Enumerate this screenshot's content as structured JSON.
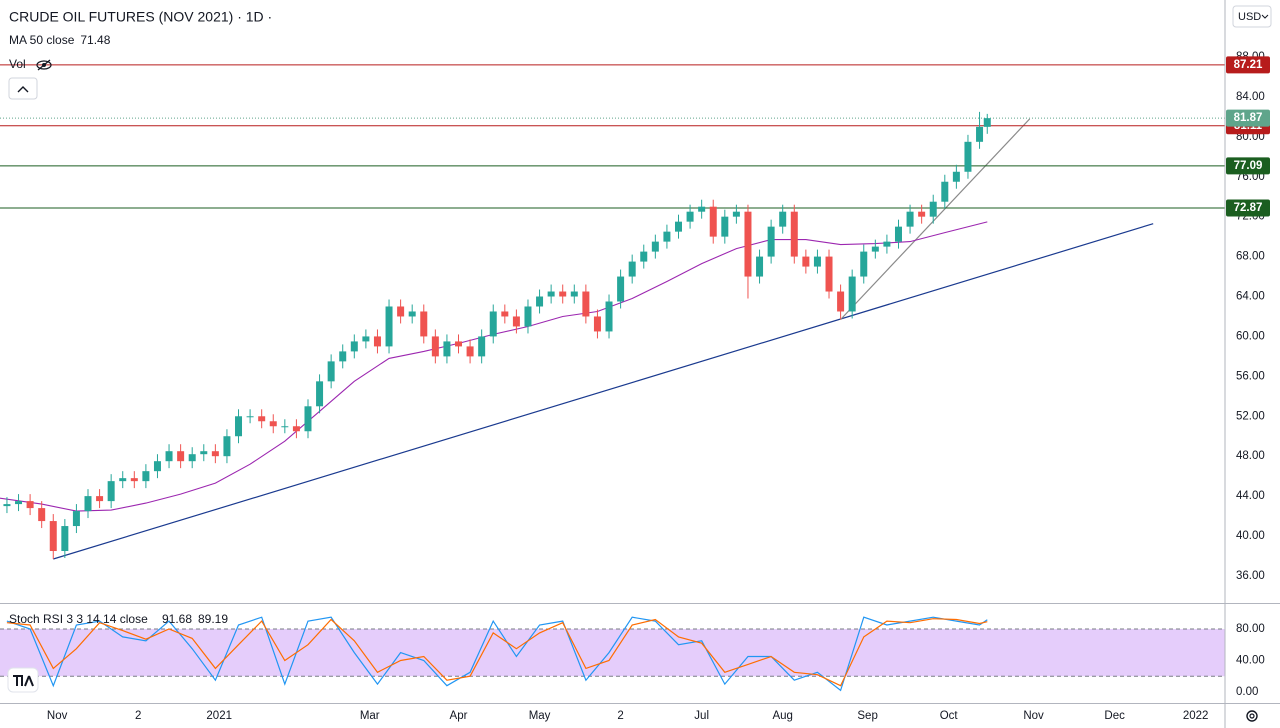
{
  "chart_data": [
    {
      "type": "candlestick",
      "title": "CRUDE OIL FUTURES (NOV 2021) · 1D ·",
      "currency": "USD",
      "up_color": "#26a69a",
      "down_color": "#ef5350",
      "xlim": [
        -14.8,
        302.6
      ],
      "ylim": [
        33.29,
        93.71
      ],
      "xticks": [
        {
          "value": 0,
          "label": "Nov"
        },
        {
          "value": 21,
          "label": "2"
        },
        {
          "value": 42,
          "label": "2021"
        },
        {
          "value": 81,
          "label": "Mar"
        },
        {
          "value": 104,
          "label": "Apr"
        },
        {
          "value": 125,
          "label": "May"
        },
        {
          "value": 146,
          "label": "2"
        },
        {
          "value": 167,
          "label": "Jul"
        },
        {
          "value": 188,
          "label": "Aug"
        },
        {
          "value": 210,
          "label": "Sep"
        },
        {
          "value": 231,
          "label": "Oct"
        },
        {
          "value": 253,
          "label": "Nov"
        },
        {
          "value": 274,
          "label": "Dec"
        },
        {
          "value": 295,
          "label": "2022"
        }
      ],
      "yticks": [
        {
          "value": 36,
          "label": "36.00"
        },
        {
          "value": 40,
          "label": "40.00"
        },
        {
          "value": 44,
          "label": "44.00"
        },
        {
          "value": 48,
          "label": "48.00"
        },
        {
          "value": 52,
          "label": "52.00"
        },
        {
          "value": 56,
          "label": "56.00"
        },
        {
          "value": 60,
          "label": "60.00"
        },
        {
          "value": 64,
          "label": "64.00"
        },
        {
          "value": 68,
          "label": "68.00"
        },
        {
          "value": 72,
          "label": "72.00"
        },
        {
          "value": 76,
          "label": "76.00"
        },
        {
          "value": 80,
          "label": "80.00"
        },
        {
          "value": 84,
          "label": "84.00"
        },
        {
          "value": 88,
          "label": "88.00"
        }
      ],
      "x": [
        -13,
        -10,
        -7,
        -4,
        -1,
        2,
        5,
        8,
        11,
        14,
        17,
        20,
        23,
        26,
        29,
        32,
        35,
        38,
        41,
        44,
        47,
        50,
        53,
        56,
        59,
        62,
        65,
        68,
        71,
        74,
        77,
        80,
        83,
        86,
        89,
        92,
        95,
        98,
        101,
        104,
        107,
        110,
        113,
        116,
        119,
        122,
        125,
        128,
        131,
        134,
        137,
        140,
        143,
        146,
        149,
        152,
        155,
        158,
        161,
        164,
        167,
        170,
        173,
        176,
        179,
        182,
        185,
        188,
        191,
        194,
        197,
        200,
        203,
        206,
        209,
        212,
        215,
        218,
        221,
        224,
        227,
        230,
        233,
        236,
        239,
        241
      ],
      "open": [
        43.0,
        43.2,
        43.5,
        42.8,
        41.5,
        38.5,
        41,
        42.5,
        44,
        43.5,
        45.5,
        45.8,
        45.5,
        46.5,
        47.5,
        48.5,
        47.5,
        48.2,
        48.5,
        48,
        50,
        52,
        52,
        51.5,
        51,
        51,
        50.5,
        53,
        55.5,
        57.5,
        58.5,
        59.5,
        60,
        59,
        63,
        62,
        62.5,
        60,
        58,
        59.5,
        59,
        58,
        60,
        62.5,
        62,
        61,
        63,
        64,
        64.5,
        64,
        64.5,
        62,
        60.5,
        63.5,
        66,
        67.5,
        68.5,
        69.5,
        70.5,
        71.5,
        72.5,
        73,
        70,
        72,
        72.5,
        66,
        68,
        71,
        72.5,
        68,
        67,
        68,
        64.5,
        62.5,
        66,
        68.5,
        69,
        69.5,
        71,
        72.5,
        72,
        73.5,
        75.5,
        76.5,
        79.5,
        81
      ],
      "high": [
        43.9,
        44.2,
        44.2,
        43.5,
        42.2,
        41.7,
        43.2,
        44.7,
        44.7,
        46.2,
        46.5,
        46.5,
        47.2,
        48.2,
        49.2,
        49.2,
        48.9,
        49.2,
        49.2,
        50.7,
        52.7,
        52.7,
        52.7,
        52.2,
        51.7,
        51.7,
        53.7,
        56.2,
        58.2,
        59.2,
        60.2,
        60.7,
        60.7,
        63.7,
        63.7,
        63.2,
        63.2,
        60.7,
        60.2,
        60.2,
        59.7,
        60.7,
        63.2,
        63.2,
        62.7,
        63.7,
        64.7,
        65.2,
        65.2,
        65.2,
        65.2,
        62.7,
        64.2,
        66.7,
        68.2,
        69.2,
        70.2,
        71.2,
        72.2,
        73.2,
        73.7,
        73.7,
        72.7,
        73.2,
        73.2,
        68.7,
        71.7,
        73.2,
        73.2,
        68.7,
        68.7,
        68.7,
        65.2,
        66.7,
        69.2,
        69.7,
        70.2,
        71.7,
        73.2,
        73.2,
        74.2,
        76.2,
        77.2,
        80.2,
        82.5,
        82.3
      ],
      "low": [
        42.3,
        42.5,
        42.1,
        40.8,
        37.7,
        37.8,
        40.3,
        41.8,
        42.8,
        42.8,
        44.8,
        44.8,
        44.8,
        45.8,
        46.8,
        46.8,
        46.8,
        47.5,
        47.3,
        47.3,
        49.3,
        51.3,
        50.8,
        50.3,
        50.3,
        49.8,
        49.8,
        52.3,
        54.8,
        56.8,
        57.8,
        58.8,
        58.3,
        58.3,
        61.3,
        61.3,
        59.3,
        57.3,
        57.3,
        58.3,
        57.3,
        57.3,
        59.3,
        61.3,
        60.3,
        60.3,
        62.3,
        63.3,
        63.3,
        63.3,
        61.3,
        59.8,
        59.8,
        62.8,
        65.3,
        66.8,
        67.8,
        68.8,
        69.8,
        70.8,
        71.8,
        69.3,
        69.3,
        71.3,
        63.8,
        65.3,
        67.3,
        70.3,
        67.3,
        66.3,
        66.3,
        63.8,
        61.7,
        61.8,
        65.3,
        67.8,
        68.3,
        68.8,
        70.3,
        71.3,
        71.3,
        72.8,
        74.8,
        75.8,
        78.8,
        80.3
      ],
      "close": [
        43.2,
        43.5,
        42.8,
        41.5,
        38.5,
        41,
        42.5,
        44,
        43.5,
        45.5,
        45.8,
        45.5,
        46.5,
        47.5,
        48.5,
        47.5,
        48.2,
        48.5,
        48,
        50,
        52,
        52,
        51.5,
        51,
        51,
        50.5,
        53,
        55.5,
        57.5,
        58.5,
        59.5,
        60,
        59,
        63,
        62,
        62.5,
        60,
        58,
        59.5,
        59,
        58,
        60,
        62.5,
        62,
        61,
        63,
        64,
        64.5,
        64,
        64.5,
        62,
        60.5,
        63.5,
        66,
        67.5,
        68.5,
        69.5,
        70.5,
        71.5,
        72.5,
        73,
        70,
        72,
        72.5,
        66,
        68,
        71,
        72.5,
        68,
        67,
        68,
        64.5,
        62.5,
        66,
        68.5,
        69,
        69.5,
        71,
        72.5,
        72,
        73.5,
        75.5,
        76.5,
        79.5,
        81,
        81.87
      ],
      "last_color": "#5fa58b",
      "ma": {
        "name": "MA 50 close",
        "color": "#9c27b0",
        "x": [
          -15,
          -4,
          5,
          14,
          23,
          32,
          41,
          50,
          59,
          68,
          77,
          86,
          95,
          104,
          113,
          122,
          131,
          140,
          149,
          158,
          167,
          176,
          185,
          194,
          203,
          212,
          221,
          230,
          241
        ],
        "values": [
          43.8,
          43.2,
          42.5,
          42.6,
          43.3,
          44.2,
          45.3,
          47.2,
          49.5,
          52.5,
          55.5,
          57.8,
          58.5,
          59.3,
          60.2,
          61,
          62,
          62.5,
          63.8,
          65.5,
          67.3,
          68.8,
          69.7,
          69.7,
          69.2,
          69.3,
          69.5,
          70.4,
          71.48
        ]
      },
      "volume_label": "Vol",
      "levels": [
        {
          "value": 87.21,
          "color": "#b71c1c"
        },
        {
          "value": 81.11,
          "color": "#b71c1c"
        },
        {
          "value": 77.09,
          "color": "#1b5e20"
        },
        {
          "value": 72.87,
          "color": "#1b5e20"
        }
      ],
      "trendlines": [
        {
          "color": "#1a3a8f",
          "x": [
            -1,
            284
          ],
          "values": [
            37.7,
            71.3
          ]
        },
        {
          "color": "#8a8a8a",
          "x": [
            203,
            252
          ],
          "values": [
            61.7,
            81.8
          ]
        }
      ]
    },
    {
      "type": "line",
      "title": "Stoch RSI 3 3 14 14 close",
      "xlim": [
        -14.8,
        302.6
      ],
      "ylim": [
        -14,
        113
      ],
      "yticks": [
        {
          "value": 0,
          "label": "0.00"
        },
        {
          "value": 40,
          "label": "40.00"
        },
        {
          "value": 80,
          "label": "80.00"
        }
      ],
      "band": [
        20,
        80
      ],
      "band_color": "#e5cdfb",
      "x": [
        -13,
        -7,
        -1,
        5,
        11,
        17,
        23,
        29,
        35,
        41,
        47,
        53,
        59,
        65,
        71,
        77,
        83,
        89,
        95,
        101,
        107,
        113,
        119,
        125,
        131,
        137,
        143,
        149,
        155,
        161,
        167,
        173,
        179,
        185,
        191,
        197,
        203,
        209,
        215,
        221,
        227,
        233,
        239,
        241
      ],
      "series": [
        {
          "color": "#2196f3",
          "values": [
            90,
            80,
            8,
            85,
            90,
            70,
            65,
            90,
            55,
            15,
            85,
            95,
            10,
            90,
            95,
            50,
            10,
            50,
            40,
            8,
            25,
            90,
            45,
            85,
            90,
            15,
            50,
            95,
            90,
            60,
            65,
            10,
            45,
            45,
            15,
            25,
            2,
            95,
            85,
            90,
            95,
            90,
            85,
            91.68
          ]
        },
        {
          "color": "#ff6d00",
          "values": [
            88,
            85,
            30,
            55,
            88,
            78,
            67,
            80,
            68,
            30,
            60,
            90,
            40,
            60,
            92,
            65,
            25,
            40,
            45,
            15,
            20,
            75,
            55,
            75,
            88,
            30,
            40,
            85,
            92,
            70,
            62,
            25,
            35,
            45,
            25,
            22,
            8,
            70,
            90,
            88,
            93,
            92,
            87,
            89.19
          ]
        }
      ]
    }
  ]
}
